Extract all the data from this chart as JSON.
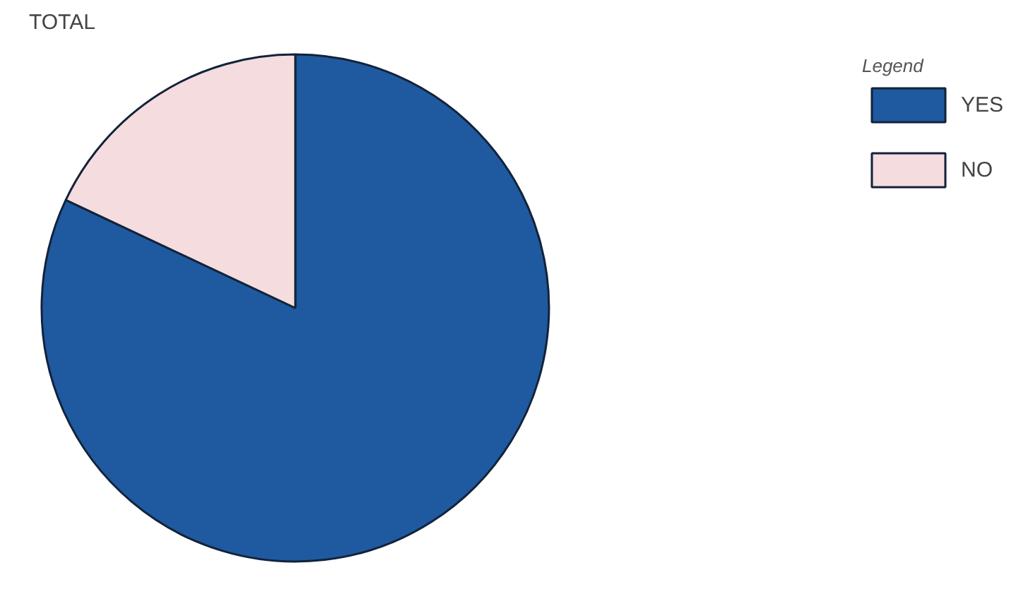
{
  "chart_data": {
    "type": "pie",
    "title": "TOTAL",
    "legend_title": "Legend",
    "legend": "top right",
    "categories": [
      "YES",
      "NO"
    ],
    "values": [
      82,
      18
    ],
    "colors": [
      "#1f5aa0",
      "#f5dcdf"
    ]
  }
}
